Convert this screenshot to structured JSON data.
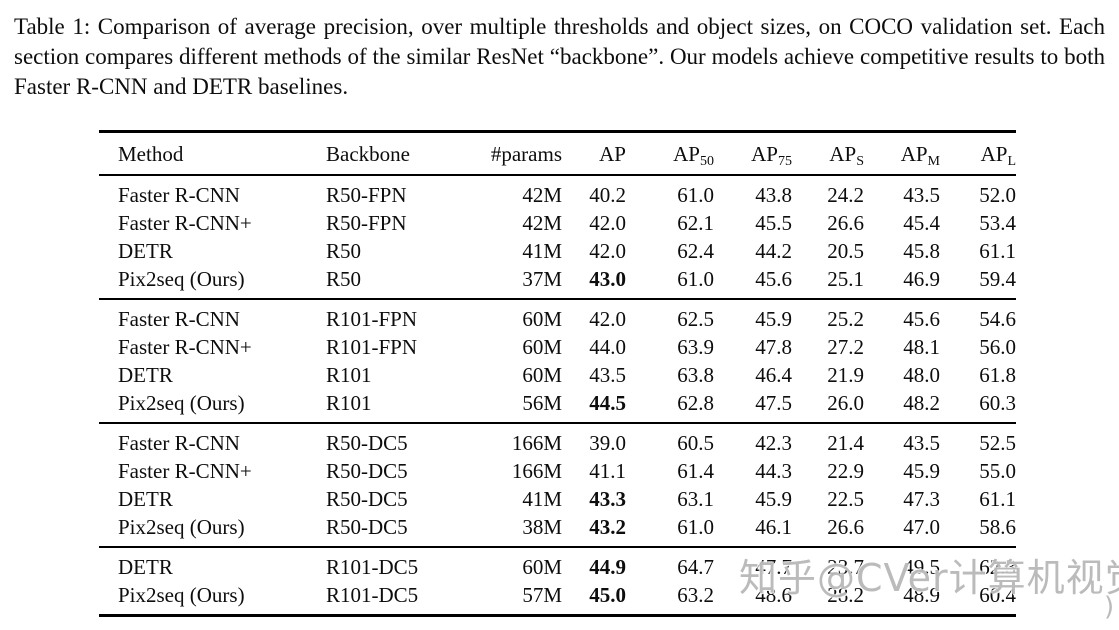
{
  "caption": "Table 1: Comparison of average precision, over multiple thresholds and object sizes, on COCO validation set. Each section compares different methods of the similar ResNet “backbone”. Our models achieve competitive results to both Faster R-CNN and DETR baselines.",
  "table": {
    "columns": [
      {
        "text": "Method"
      },
      {
        "text": "Backbone"
      },
      {
        "text": "#params"
      },
      {
        "text": "AP"
      },
      {
        "text": "AP",
        "sub": "50"
      },
      {
        "text": "AP",
        "sub": "75"
      },
      {
        "text": "AP",
        "sub": "S"
      },
      {
        "text": "AP",
        "sub": "M"
      },
      {
        "text": "AP",
        "sub": "L"
      }
    ],
    "sections": [
      {
        "rows": [
          {
            "cells": [
              "Faster R-CNN",
              "R50-FPN",
              "42M",
              "40.2",
              "61.0",
              "43.8",
              "24.2",
              "43.5",
              "52.0"
            ],
            "bold": []
          },
          {
            "cells": [
              "Faster R-CNN+",
              "R50-FPN",
              "42M",
              "42.0",
              "62.1",
              "45.5",
              "26.6",
              "45.4",
              "53.4"
            ],
            "bold": []
          },
          {
            "cells": [
              "DETR",
              "R50",
              "41M",
              "42.0",
              "62.4",
              "44.2",
              "20.5",
              "45.8",
              "61.1"
            ],
            "bold": []
          },
          {
            "cells": [
              "Pix2seq (Ours)",
              "R50",
              "37M",
              "43.0",
              "61.0",
              "45.6",
              "25.1",
              "46.9",
              "59.4"
            ],
            "bold": [
              3
            ]
          }
        ]
      },
      {
        "rows": [
          {
            "cells": [
              "Faster R-CNN",
              "R101-FPN",
              "60M",
              "42.0",
              "62.5",
              "45.9",
              "25.2",
              "45.6",
              "54.6"
            ],
            "bold": []
          },
          {
            "cells": [
              "Faster R-CNN+",
              "R101-FPN",
              "60M",
              "44.0",
              "63.9",
              "47.8",
              "27.2",
              "48.1",
              "56.0"
            ],
            "bold": []
          },
          {
            "cells": [
              "DETR",
              "R101",
              "60M",
              "43.5",
              "63.8",
              "46.4",
              "21.9",
              "48.0",
              "61.8"
            ],
            "bold": []
          },
          {
            "cells": [
              "Pix2seq (Ours)",
              "R101",
              "56M",
              "44.5",
              "62.8",
              "47.5",
              "26.0",
              "48.2",
              "60.3"
            ],
            "bold": [
              3
            ]
          }
        ]
      },
      {
        "rows": [
          {
            "cells": [
              "Faster R-CNN",
              "R50-DC5",
              "166M",
              "39.0",
              "60.5",
              "42.3",
              "21.4",
              "43.5",
              "52.5"
            ],
            "bold": []
          },
          {
            "cells": [
              "Faster R-CNN+",
              "R50-DC5",
              "166M",
              "41.1",
              "61.4",
              "44.3",
              "22.9",
              "45.9",
              "55.0"
            ],
            "bold": []
          },
          {
            "cells": [
              "DETR",
              "R50-DC5",
              "41M",
              "43.3",
              "63.1",
              "45.9",
              "22.5",
              "47.3",
              "61.1"
            ],
            "bold": [
              3
            ]
          },
          {
            "cells": [
              "Pix2seq (Ours)",
              "R50-DC5",
              "38M",
              "43.2",
              "61.0",
              "46.1",
              "26.6",
              "47.0",
              "58.6"
            ],
            "bold": [
              3
            ]
          }
        ]
      },
      {
        "rows": [
          {
            "cells": [
              "DETR",
              "R101-DC5",
              "60M",
              "44.9",
              "64.7",
              "47.7",
              "23.7",
              "49.5",
              "62.3"
            ],
            "bold": [
              3
            ]
          },
          {
            "cells": [
              "Pix2seq (Ours)",
              "R101-DC5",
              "57M",
              "45.0",
              "63.2",
              "48.6",
              "28.2",
              "48.9",
              "60.4"
            ],
            "bold": [
              3
            ]
          }
        ]
      }
    ]
  },
  "watermark": {
    "text": "知乎@CVer计算机视觉",
    "flourish": ")",
    "color": "#b2b2b2"
  }
}
